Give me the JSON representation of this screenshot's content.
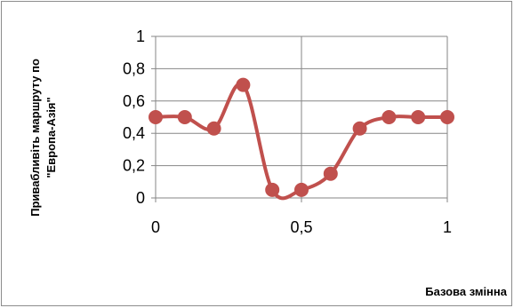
{
  "chart_data": {
    "type": "line",
    "title": "",
    "xlabel": "Базова змінна",
    "ylabel_lines": [
      "Привабливіть маршруту по",
      "\"Европа-Азія\""
    ],
    "x_tick_labels": [
      "0",
      "0,5",
      "1"
    ],
    "x_ticks": [
      0,
      0.5,
      1
    ],
    "y_tick_labels": [
      "0",
      "0,2",
      "0,4",
      "0,6",
      "0,8",
      "1"
    ],
    "y_ticks": [
      0,
      0.2,
      0.4,
      0.6,
      0.8,
      1
    ],
    "xlim": [
      0,
      1
    ],
    "ylim": [
      0,
      1
    ],
    "grid": true,
    "series": [
      {
        "color": "#c0504d",
        "smooth": true,
        "x": [
          0,
          0.1,
          0.2,
          0.3,
          0.4,
          0.5,
          0.6,
          0.7,
          0.8,
          0.9,
          1.0
        ],
        "y": [
          0.5,
          0.5,
          0.43,
          0.7,
          0.05,
          0.05,
          0.15,
          0.43,
          0.5,
          0.5,
          0.5
        ]
      }
    ]
  }
}
